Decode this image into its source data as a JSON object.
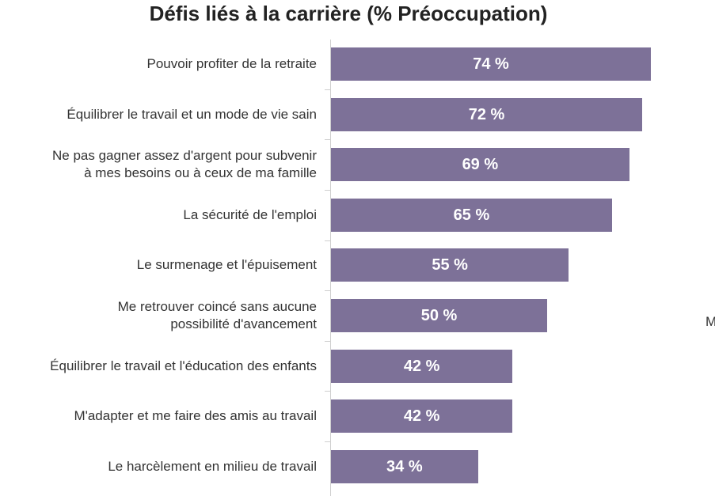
{
  "chart_data": {
    "type": "bar",
    "orientation": "horizontal",
    "title": "Défis liés à la carrière (% Préoccupation)",
    "xlabel": "",
    "ylabel": "",
    "xlim": [
      0,
      100
    ],
    "grid": false,
    "categories": [
      [
        "Pouvoir profiter de la retraite"
      ],
      [
        "Équilibrer le travail et un mode de vie sain"
      ],
      [
        "Ne pas gagner assez d'argent pour subvenir",
        "à mes besoins ou à ceux de ma famille"
      ],
      [
        "La sécurité de l'emploi"
      ],
      [
        "Le surmenage et l'épuisement"
      ],
      [
        "Me retrouver coincé sans aucune",
        "possibilité d'avancement"
      ],
      [
        "Équilibrer le travail et l'éducation des enfants"
      ],
      [
        "M'adapter et me faire des amis au travail"
      ],
      [
        "Le harcèlement en milieu de travail"
      ]
    ],
    "values": [
      74,
      72,
      69,
      65,
      55,
      50,
      42,
      42,
      34
    ],
    "value_labels": [
      "74 %",
      "72 %",
      "69 %",
      "65 %",
      "55 %",
      "50 %",
      "42 %",
      "42 %",
      "34 %"
    ],
    "bar_color": "#7d7198"
  },
  "stray_text": "M"
}
